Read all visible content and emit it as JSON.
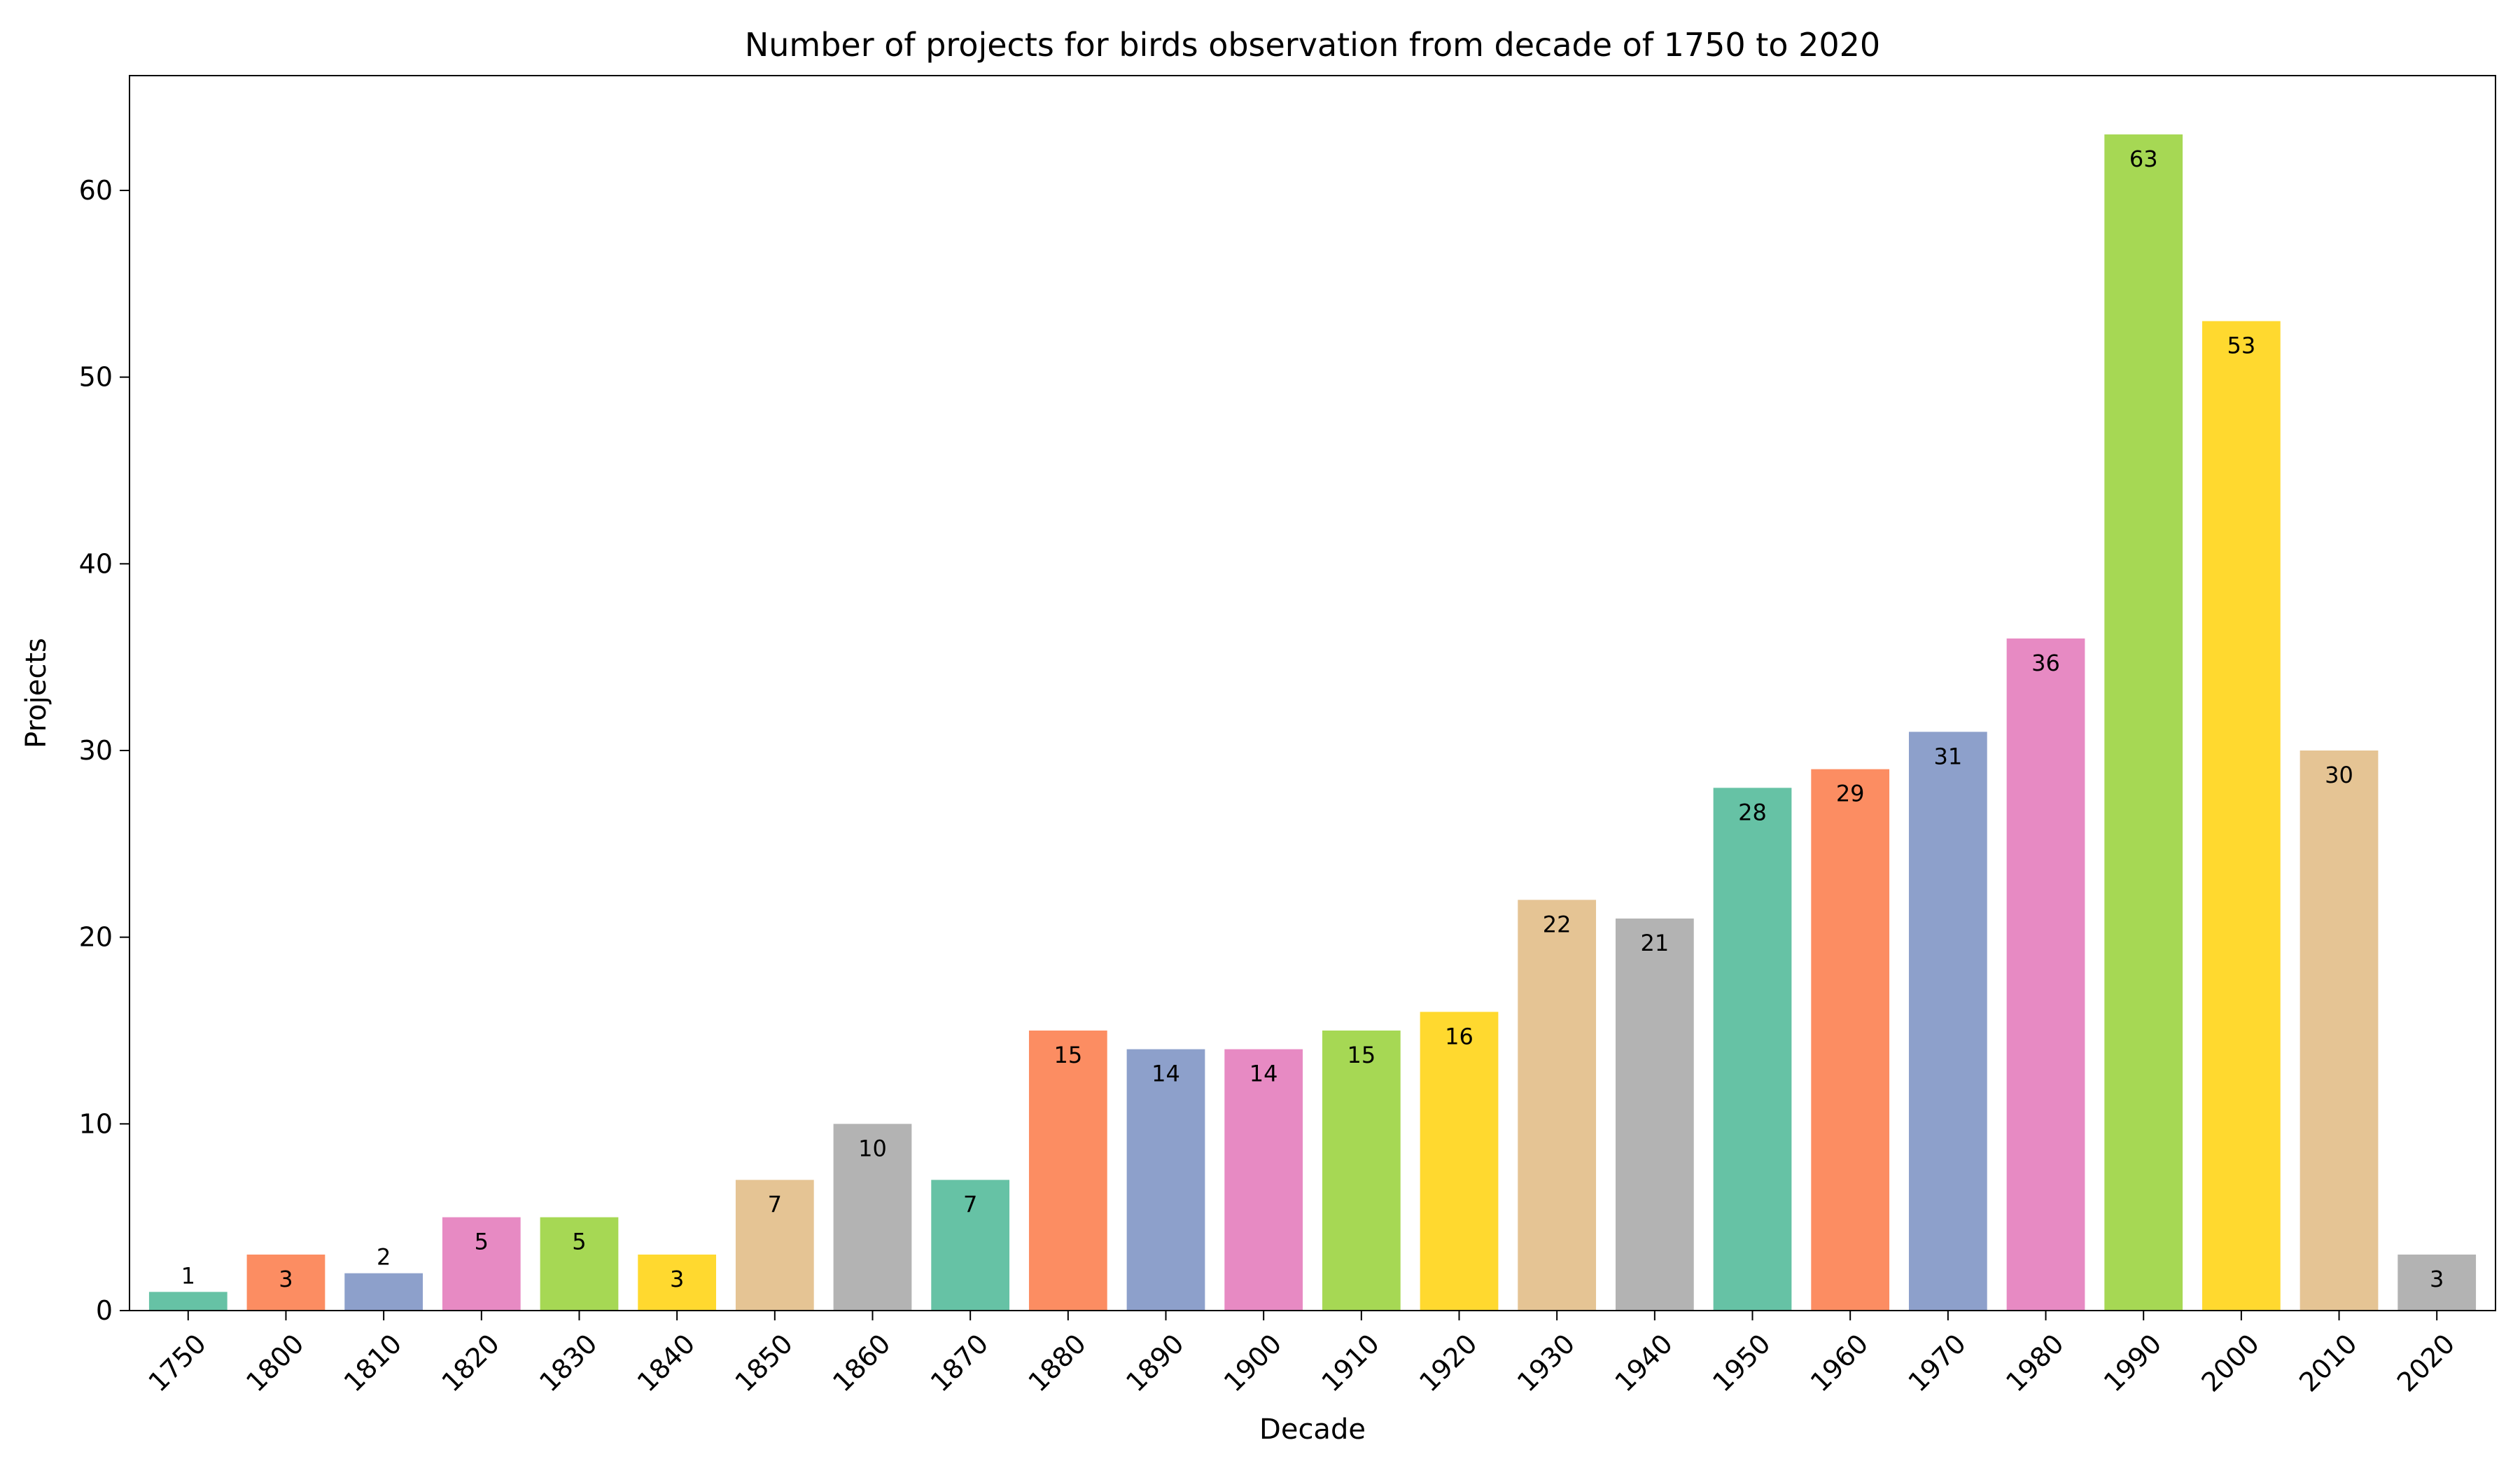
{
  "chart_data": {
    "type": "bar",
    "title": "Number of projects for birds observation from decade of 1750 to 2020",
    "xlabel": "Decade",
    "ylabel": "Projects",
    "ylim": [
      0,
      66.15
    ],
    "yticks": [
      0,
      10,
      20,
      30,
      40,
      50,
      60
    ],
    "grid": false,
    "categories": [
      "1750",
      "1800",
      "1810",
      "1820",
      "1830",
      "1840",
      "1850",
      "1860",
      "1870",
      "1880",
      "1890",
      "1900",
      "1910",
      "1920",
      "1930",
      "1940",
      "1950",
      "1960",
      "1970",
      "1980",
      "1990",
      "2000",
      "2010",
      "2020"
    ],
    "values": [
      1,
      3,
      2,
      5,
      5,
      3,
      7,
      10,
      7,
      15,
      14,
      14,
      15,
      16,
      22,
      21,
      28,
      29,
      31,
      36,
      63,
      53,
      30,
      3
    ],
    "colors": [
      "#66c2a5",
      "#fc8d62",
      "#8da0cb",
      "#e78ac3",
      "#a6d854",
      "#ffd92f",
      "#e5c494",
      "#b3b3b3"
    ]
  }
}
